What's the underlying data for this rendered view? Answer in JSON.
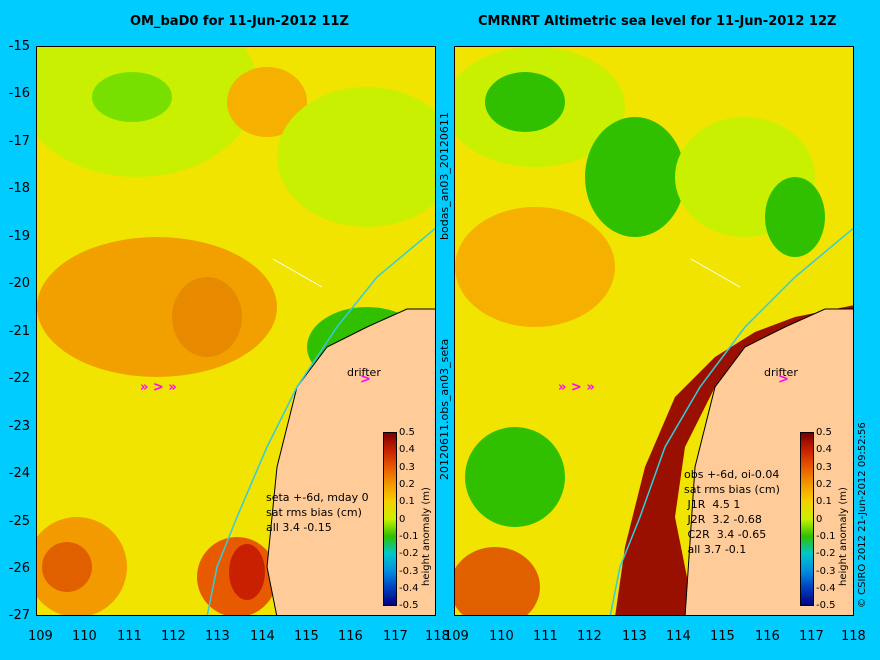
{
  "left_panel": {
    "title": "OM_baD0 for 11-Jun-2012 11Z",
    "stats": "seta +-6d, mday 0\nsat rms bias (cm)\nall 3.4 -0.15",
    "drifter_label": "drifter"
  },
  "right_panel": {
    "title": "CMRNRT Altimetric sea level  for 11-Jun-2012 12Z",
    "stats": "obs +-6d, oi-0.04\nsat rms bias (cm)\n J1R  4.5 1\n J2R  3.2 -0.68\n C2R  3.4 -0.65\n all 3.7 -0.1",
    "drifter_label": "drifter"
  },
  "side_labels": {
    "upper": "bodas_an03_20120611",
    "lower": "20120611.obs_an03_seta",
    "copyright": "© CSIRO 2012  21-Jun-2012 09:52:56"
  },
  "drifter_glyph": ">",
  "axes": {
    "y_ticks": [
      "-15",
      "-16",
      "-17",
      "-18",
      "-19",
      "-20",
      "-21",
      "-22",
      "-23",
      "-24",
      "-25",
      "-26",
      "-27"
    ],
    "x_ticks_left": [
      "109",
      "110",
      "111",
      "112",
      "113",
      "114",
      "115",
      "116",
      "117",
      "118"
    ],
    "x_ticks_right": [
      "109",
      "110",
      "111",
      "112",
      "113",
      "114",
      "115",
      "116",
      "117",
      "118"
    ],
    "lat_range": [
      -27,
      -15
    ],
    "lon_range": [
      109,
      118
    ]
  },
  "colorbar": {
    "label": "height anomaly (m)",
    "ticks": [
      "0.5",
      "0.4",
      "0.3",
      "0.2",
      "0.1",
      "0",
      "-0.1",
      "-0.2",
      "-0.3",
      "-0.4",
      "-0.5"
    ],
    "range": [
      -0.5,
      0.5
    ]
  },
  "colors": {
    "background": "#00ccff",
    "land": "#ffcc99",
    "coastline_track": "#33ccdd",
    "drifter": "#ff00ff"
  }
}
